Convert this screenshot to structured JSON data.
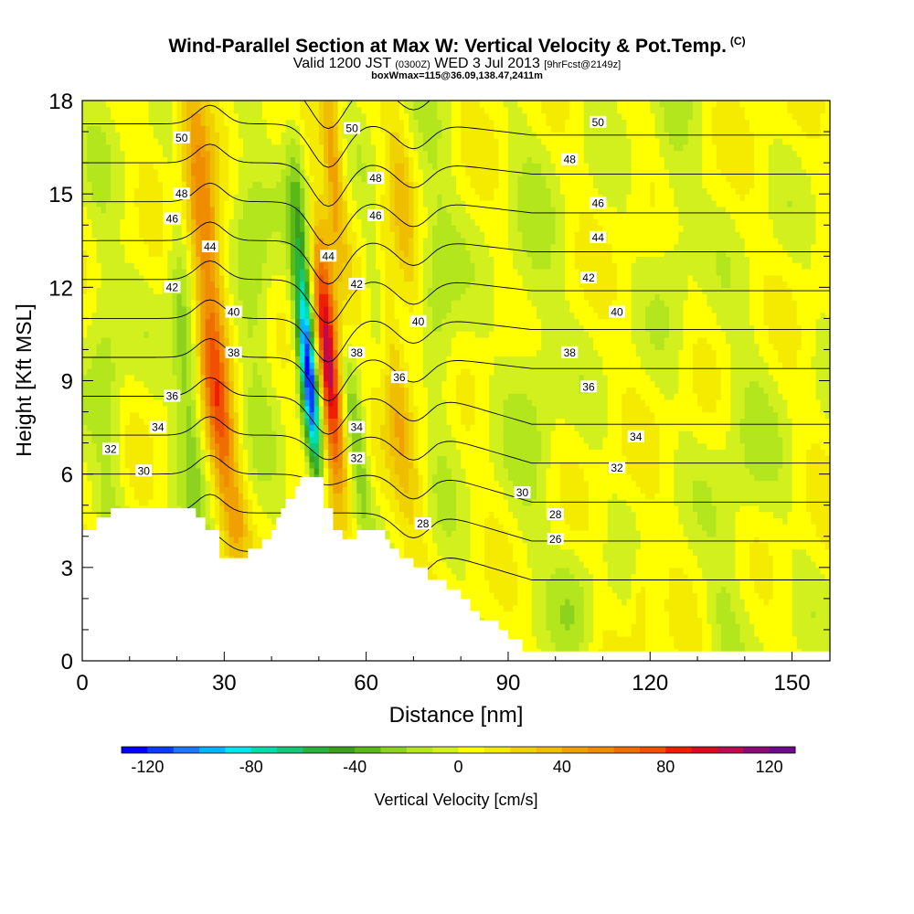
{
  "header": {
    "title": "Wind-Parallel Section at Max W: Vertical Velocity & Pot.Temp.",
    "copyright": "(C)",
    "valid_prefix": "Valid 1200 JST",
    "valid_utc": "(0300Z)",
    "valid_date": "WED 3 Jul 2013",
    "forecast": "[9hrFcst@2149z]",
    "box_info": "boxWmax=115@36.09,138.47,2411m"
  },
  "chart_data": {
    "type": "heatmap",
    "xlabel": "Distance [nm]",
    "ylabel": "Height [Kft MSL]",
    "xlim": [
      0,
      158
    ],
    "ylim": [
      0,
      18
    ],
    "x_ticks": [
      0,
      30,
      60,
      90,
      120,
      150
    ],
    "y_ticks": [
      0,
      3,
      6,
      9,
      12,
      15,
      18
    ],
    "colorbar": {
      "label": "Vertical Velocity [cm/s]",
      "range": [
        -130,
        130
      ],
      "step": 10,
      "tick_values": [
        -120,
        -80,
        -40,
        0,
        40,
        80,
        120
      ],
      "tick_labels": [
        "-120",
        "-80",
        "-40",
        "0",
        "40",
        "80",
        "120"
      ],
      "colors": [
        "#0000ff",
        "#0a3cff",
        "#1e78ff",
        "#00b4ff",
        "#00e6f0",
        "#00dcaa",
        "#14c878",
        "#28b43c",
        "#3ca01e",
        "#5ab914",
        "#8cd21e",
        "#b4e61e",
        "#d2f01e",
        "#ffff00",
        "#f5eb00",
        "#f0d200",
        "#f0be00",
        "#f0a000",
        "#f08c00",
        "#f06e00",
        "#f05000",
        "#f01e00",
        "#dc0a1e",
        "#be0a50",
        "#8c0a78",
        "#6e0a8c"
      ]
    },
    "terrain_kft": [
      [
        0,
        4.2
      ],
      [
        3,
        4.2
      ],
      [
        3,
        4.6
      ],
      [
        6,
        4.6
      ],
      [
        6,
        4.9
      ],
      [
        24,
        4.9
      ],
      [
        24,
        4.6
      ],
      [
        26,
        4.6
      ],
      [
        26,
        4.2
      ],
      [
        29,
        4.2
      ],
      [
        29,
        3.3
      ],
      [
        35,
        3.3
      ],
      [
        35,
        3.6
      ],
      [
        38,
        3.6
      ],
      [
        38,
        3.9
      ],
      [
        40,
        3.9
      ],
      [
        40,
        4.2
      ],
      [
        41,
        4.2
      ],
      [
        41,
        4.6
      ],
      [
        42,
        4.6
      ],
      [
        42,
        4.9
      ],
      [
        43,
        4.9
      ],
      [
        43,
        5.2
      ],
      [
        45,
        5.2
      ],
      [
        45,
        5.6
      ],
      [
        46,
        5.6
      ],
      [
        46,
        5.9
      ],
      [
        51,
        5.9
      ],
      [
        51,
        4.9
      ],
      [
        53,
        4.9
      ],
      [
        53,
        4.2
      ],
      [
        55,
        4.2
      ],
      [
        55,
        3.9
      ],
      [
        58,
        3.9
      ],
      [
        58,
        4.2
      ],
      [
        64,
        4.2
      ],
      [
        64,
        3.9
      ],
      [
        65,
        3.9
      ],
      [
        65,
        3.6
      ],
      [
        67,
        3.6
      ],
      [
        67,
        3.3
      ],
      [
        70,
        3.3
      ],
      [
        70,
        3.0
      ],
      [
        73,
        3.0
      ],
      [
        73,
        2.6
      ],
      [
        77,
        2.6
      ],
      [
        77,
        2.3
      ],
      [
        80,
        2.3
      ],
      [
        80,
        2.0
      ],
      [
        82,
        2.0
      ],
      [
        82,
        1.6
      ],
      [
        84,
        1.6
      ],
      [
        84,
        1.3
      ],
      [
        88,
        1.3
      ],
      [
        88,
        1.0
      ],
      [
        90,
        1.0
      ],
      [
        90,
        0.7
      ],
      [
        93,
        0.7
      ],
      [
        93,
        0.3
      ],
      [
        158,
        0.3
      ]
    ],
    "w_features": [
      {
        "x": 26,
        "z": 13.5,
        "sx": 2.4,
        "sz": 4.5,
        "w": 60,
        "tilt": -0.22
      },
      {
        "x": 29,
        "z": 7.5,
        "sx": 2.0,
        "sz": 2.5,
        "w": 40,
        "tilt": -0.25
      },
      {
        "x": 52,
        "z": 9.5,
        "sx": 1.7,
        "sz": 2.6,
        "w": 115,
        "tilt": -0.18
      },
      {
        "x": 53,
        "z": 16.2,
        "sx": 1.5,
        "sz": 2.3,
        "w": 45,
        "tilt": -0.15
      },
      {
        "x": 66,
        "z": 9.0,
        "sx": 2.2,
        "sz": 3.5,
        "w": 35,
        "tilt": -0.28
      },
      {
        "x": 68,
        "z": 14.0,
        "sx": 1.8,
        "sz": 3.0,
        "w": 25,
        "tilt": -0.2
      },
      {
        "x": 48,
        "z": 9.0,
        "sx": 1.3,
        "sz": 2.4,
        "w": -120,
        "tilt": -0.18
      },
      {
        "x": 46,
        "z": 14.0,
        "sx": 1.6,
        "sz": 3.0,
        "w": -30,
        "tilt": -0.15
      },
      {
        "x": 58,
        "z": 7.0,
        "sx": 1.4,
        "sz": 2.0,
        "w": -35,
        "tilt": -0.25
      },
      {
        "x": 62,
        "z": 12.0,
        "sx": 1.5,
        "sz": 2.5,
        "w": -25,
        "tilt": -0.2
      },
      {
        "x": 22,
        "z": 9.5,
        "sx": 2.0,
        "sz": 3.5,
        "w": -35,
        "tilt": -0.15
      },
      {
        "x": 36,
        "z": 12.5,
        "sx": 2.8,
        "sz": 3.5,
        "w": -25,
        "tilt": -0.15
      },
      {
        "x": 5,
        "z": 9.0,
        "sx": 2.5,
        "sz": 4.5,
        "w": -20,
        "tilt": -0.1
      },
      {
        "x": 33,
        "z": 4.7,
        "sx": 1.5,
        "sz": 0.8,
        "w": 15,
        "tilt": 0
      },
      {
        "x": 75,
        "z": 12.0,
        "sx": 3.0,
        "sz": 4.0,
        "w": -20,
        "tilt": -0.1
      },
      {
        "x": 95,
        "z": 10.0,
        "sx": 4.0,
        "sz": 5.0,
        "w": -15,
        "tilt": 0
      },
      {
        "x": 125,
        "z": 15.0,
        "sx": 3.0,
        "sz": 3.0,
        "w": -15,
        "tilt": 0
      },
      {
        "x": 140,
        "z": 7.0,
        "sx": 5.0,
        "sz": 3.0,
        "w": -12,
        "tilt": 0
      },
      {
        "x": 118,
        "z": 2.0,
        "sx": 1.5,
        "sz": 1.2,
        "w": 18,
        "tilt": 0
      },
      {
        "x": 104,
        "z": 2.0,
        "sx": 3.0,
        "sz": 1.5,
        "w": -15,
        "tilt": 0
      },
      {
        "x": 135,
        "z": 1.5,
        "sx": 3.0,
        "sz": 1.5,
        "w": -12,
        "tilt": 0
      }
    ],
    "theta_levels": [
      26,
      28,
      30,
      32,
      34,
      36,
      38,
      40,
      42,
      44,
      46,
      48,
      50
    ],
    "theta_labels": [
      {
        "text": "50",
        "x": 21,
        "z": 16.8
      },
      {
        "text": "48",
        "x": 21,
        "z": 15.0
      },
      {
        "text": "46",
        "x": 19,
        "z": 14.2
      },
      {
        "text": "44",
        "x": 27,
        "z": 13.3
      },
      {
        "text": "42",
        "x": 19,
        "z": 12.0
      },
      {
        "text": "40",
        "x": 32,
        "z": 11.2
      },
      {
        "text": "38",
        "x": 32,
        "z": 9.9
      },
      {
        "text": "36",
        "x": 19,
        "z": 8.5
      },
      {
        "text": "34",
        "x": 16,
        "z": 7.5
      },
      {
        "text": "32",
        "x": 6,
        "z": 6.8
      },
      {
        "text": "30",
        "x": 13,
        "z": 6.1
      },
      {
        "text": "50",
        "x": 57,
        "z": 17.1
      },
      {
        "text": "48",
        "x": 62,
        "z": 15.5
      },
      {
        "text": "46",
        "x": 62,
        "z": 14.3
      },
      {
        "text": "44",
        "x": 52,
        "z": 13.0
      },
      {
        "text": "42",
        "x": 58,
        "z": 12.1
      },
      {
        "text": "40",
        "x": 71,
        "z": 10.9
      },
      {
        "text": "38",
        "x": 58,
        "z": 9.9
      },
      {
        "text": "36",
        "x": 67,
        "z": 9.1
      },
      {
        "text": "34",
        "x": 58,
        "z": 7.5
      },
      {
        "text": "32",
        "x": 58,
        "z": 6.5
      },
      {
        "text": "28",
        "x": 72,
        "z": 4.4
      },
      {
        "text": "50",
        "x": 109,
        "z": 17.3
      },
      {
        "text": "48",
        "x": 103,
        "z": 16.1
      },
      {
        "text": "46",
        "x": 109,
        "z": 14.7
      },
      {
        "text": "44",
        "x": 109,
        "z": 13.6
      },
      {
        "text": "42",
        "x": 107,
        "z": 12.3
      },
      {
        "text": "40",
        "x": 113,
        "z": 11.2
      },
      {
        "text": "38",
        "x": 103,
        "z": 9.9
      },
      {
        "text": "36",
        "x": 107,
        "z": 8.8
      },
      {
        "text": "34",
        "x": 117,
        "z": 7.2
      },
      {
        "text": "32",
        "x": 113,
        "z": 6.2
      },
      {
        "text": "30",
        "x": 93,
        "z": 5.4
      },
      {
        "text": "28",
        "x": 100,
        "z": 4.7
      },
      {
        "text": "26",
        "x": 100,
        "z": 3.9
      }
    ]
  }
}
